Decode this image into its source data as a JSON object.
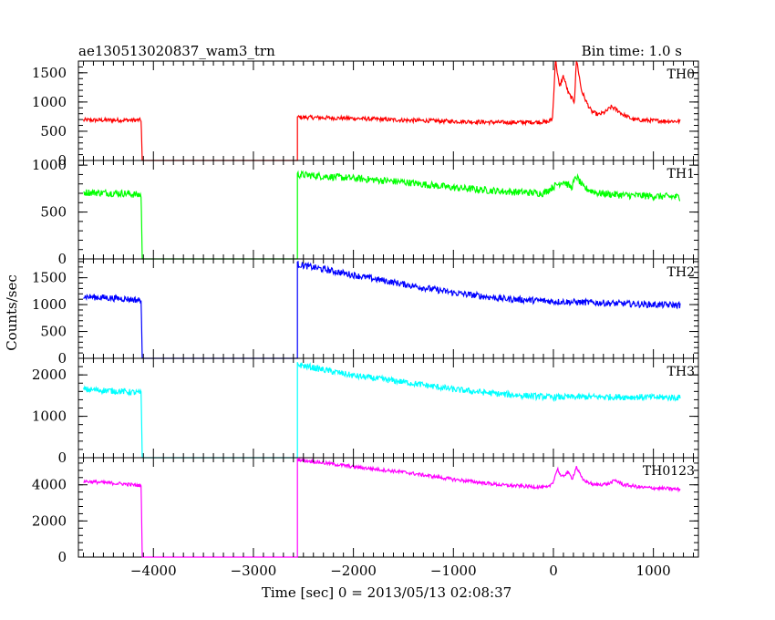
{
  "chart_data": {
    "type": "line",
    "title": "ae130513020837_wam3_trn",
    "bin_time_label": "Bin time: 1.0 s",
    "xlabel": "Time [sec] 0 = 2013/05/13 02:08:37",
    "ylabel": "Counts/sec",
    "xlim": [
      -4750,
      1450
    ],
    "x_ticks": [
      -4000,
      -3000,
      -2000,
      -1000,
      0,
      1000
    ],
    "x_tick_labels": [
      "−4000",
      "−3000",
      "−2000",
      "−1000",
      "0",
      "1000"
    ],
    "gap": [
      -4120,
      -2560
    ],
    "panels": [
      {
        "name": "TH0",
        "color": "#ff0000",
        "ylim": [
          0,
          1700
        ],
        "y_ticks": [
          0,
          500,
          1000,
          1500
        ],
        "y_tick_labels": [
          "0",
          "500",
          "1000",
          "1500"
        ],
        "noise": 35,
        "points": [
          [
            -4700,
            690
          ],
          [
            -4300,
            690
          ],
          [
            -4120,
            690
          ],
          [
            -2560,
            740
          ],
          [
            -2000,
            720
          ],
          [
            -1500,
            690
          ],
          [
            -1000,
            670
          ],
          [
            -500,
            650
          ],
          [
            -50,
            660
          ],
          [
            -10,
            720
          ],
          [
            0,
            1000
          ],
          [
            20,
            1750
          ],
          [
            60,
            1250
          ],
          [
            100,
            1450
          ],
          [
            150,
            1150
          ],
          [
            210,
            1000
          ],
          [
            230,
            1750
          ],
          [
            280,
            1200
          ],
          [
            330,
            1000
          ],
          [
            380,
            840
          ],
          [
            450,
            780
          ],
          [
            520,
            830
          ],
          [
            580,
            920
          ],
          [
            640,
            860
          ],
          [
            700,
            780
          ],
          [
            800,
            700
          ],
          [
            1000,
            680
          ],
          [
            1270,
            670
          ]
        ]
      },
      {
        "name": "TH1",
        "color": "#00ff00",
        "ylim": [
          0,
          1050
        ],
        "y_ticks": [
          0,
          500,
          1000
        ],
        "y_tick_labels": [
          "0",
          "500",
          "1000"
        ],
        "noise": 38,
        "points": [
          [
            -4700,
            710
          ],
          [
            -4300,
            700
          ],
          [
            -4120,
            680
          ],
          [
            -2560,
            900
          ],
          [
            -2000,
            860
          ],
          [
            -1500,
            820
          ],
          [
            -1000,
            760
          ],
          [
            -500,
            720
          ],
          [
            -100,
            700
          ],
          [
            0,
            770
          ],
          [
            100,
            830
          ],
          [
            180,
            760
          ],
          [
            230,
            880
          ],
          [
            300,
            760
          ],
          [
            450,
            700
          ],
          [
            700,
            680
          ],
          [
            1000,
            670
          ],
          [
            1270,
            660
          ]
        ]
      },
      {
        "name": "TH2",
        "color": "#0000ff",
        "ylim": [
          0,
          1850
        ],
        "y_ticks": [
          0,
          500,
          1000,
          1500
        ],
        "y_tick_labels": [
          "0",
          "500",
          "1000",
          "1500"
        ],
        "noise": 60,
        "points": [
          [
            -4700,
            1150
          ],
          [
            -4300,
            1110
          ],
          [
            -4120,
            1080
          ],
          [
            -2560,
            1750
          ],
          [
            -2000,
            1550
          ],
          [
            -1500,
            1380
          ],
          [
            -1000,
            1220
          ],
          [
            -500,
            1110
          ],
          [
            0,
            1060
          ],
          [
            500,
            1030
          ],
          [
            1000,
            1000
          ],
          [
            1270,
            990
          ]
        ]
      },
      {
        "name": "TH3",
        "color": "#00ffff",
        "ylim": [
          0,
          2400
        ],
        "y_ticks": [
          0,
          1000,
          2000
        ],
        "y_tick_labels": [
          "0",
          "1000",
          "2000"
        ],
        "noise": 75,
        "points": [
          [
            -4700,
            1650
          ],
          [
            -4300,
            1600
          ],
          [
            -4120,
            1560
          ],
          [
            -2560,
            2250
          ],
          [
            -2000,
            1980
          ],
          [
            -1500,
            1830
          ],
          [
            -1000,
            1650
          ],
          [
            -500,
            1530
          ],
          [
            0,
            1460
          ],
          [
            500,
            1470
          ],
          [
            1000,
            1460
          ],
          [
            1270,
            1450
          ]
        ]
      },
      {
        "name": "TH0123",
        "color": "#ff00ff",
        "ylim": [
          0,
          5500
        ],
        "y_ticks": [
          0,
          2000,
          4000
        ],
        "y_tick_labels": [
          "0",
          "2000",
          "4000"
        ],
        "noise": 95,
        "points": [
          [
            -4700,
            4200
          ],
          [
            -4300,
            4050
          ],
          [
            -4120,
            3950
          ],
          [
            -2560,
            5400
          ],
          [
            -2000,
            5000
          ],
          [
            -1500,
            4700
          ],
          [
            -1000,
            4300
          ],
          [
            -500,
            3980
          ],
          [
            -50,
            3850
          ],
          [
            0,
            4200
          ],
          [
            40,
            4900
          ],
          [
            80,
            4400
          ],
          [
            140,
            4700
          ],
          [
            190,
            4350
          ],
          [
            230,
            5000
          ],
          [
            290,
            4300
          ],
          [
            400,
            4000
          ],
          [
            550,
            4050
          ],
          [
            620,
            4250
          ],
          [
            700,
            4000
          ],
          [
            900,
            3850
          ],
          [
            1270,
            3750
          ]
        ]
      }
    ]
  }
}
